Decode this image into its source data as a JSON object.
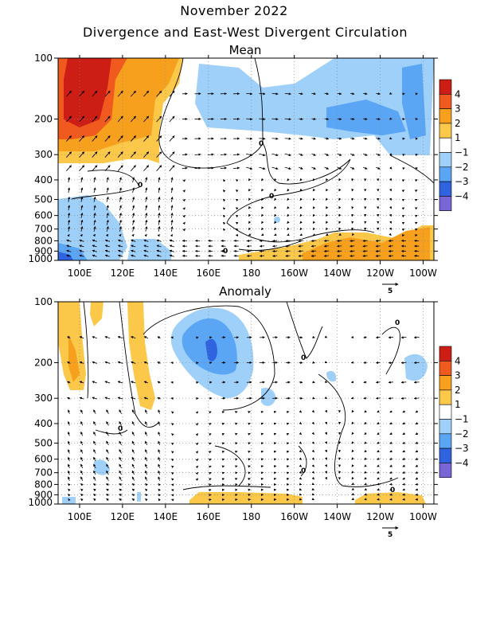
{
  "header": {
    "title": "November 2022",
    "subtitle": "Divergence and East-West Divergent Circulation"
  },
  "colors": {
    "d4": "#cc1e14",
    "d3": "#f05a1e",
    "d2": "#f7a01e",
    "d1": "#fcc84a",
    "c1": "#9fd0fa",
    "c2": "#5aa6f5",
    "c3": "#2f63e0",
    "c4": "#7865d6",
    "zero": "#ffffff"
  },
  "chart_data": [
    {
      "type": "heatmap",
      "title": "Mean",
      "x_ticks": [
        "100E",
        "120E",
        "140E",
        "160E",
        "180",
        "160W",
        "140W",
        "120W",
        "100W"
      ],
      "y_ticks": [
        "100",
        "200",
        "300",
        "400",
        "500",
        "600",
        "700",
        "800",
        "900",
        "1000"
      ],
      "xlim": [
        "90E",
        "95W"
      ],
      "ylim": [
        1000,
        100
      ],
      "y_scale": "log",
      "colorbar": [
        "4",
        "3",
        "2",
        "1",
        "−1",
        "−2",
        "−3",
        "−4"
      ],
      "reference_vector": "5",
      "contour_labels": [
        "0",
        "0",
        "0",
        "0"
      ],
      "features": [
        {
          "region": "90E–140E, 100–300 hPa",
          "sign": "divergence",
          "max_level": 4
        },
        {
          "region": "160E–100W, 100–250 hPa",
          "sign": "convergence",
          "max_level": -2
        },
        {
          "region": "90E–150E, 500–1000 hPa",
          "sign": "convergence",
          "max_level": -3
        },
        {
          "region": "180–100W, 750–1000 hPa",
          "sign": "divergence",
          "max_level": 2
        }
      ]
    },
    {
      "type": "heatmap",
      "title": "Anomaly",
      "x_ticks": [
        "100E",
        "120E",
        "140E",
        "160E",
        "180",
        "160W",
        "140W",
        "120W",
        "100W"
      ],
      "y_ticks": [
        "100",
        "200",
        "300",
        "400",
        "500",
        "600",
        "700",
        "800",
        "900",
        "1000"
      ],
      "xlim": [
        "90E",
        "95W"
      ],
      "ylim": [
        1000,
        100
      ],
      "y_scale": "log",
      "colorbar": [
        "4",
        "3",
        "2",
        "1",
        "−1",
        "−2",
        "−3",
        "−4"
      ],
      "reference_vector": "5",
      "contour_labels": [
        "0",
        "0",
        "0",
        "0",
        "0"
      ],
      "features": [
        {
          "region": "140E–180, 100–300 hPa",
          "sign": "convergence",
          "max_level": -3
        },
        {
          "region": "90E–130E, 100–300 hPa",
          "sign": "divergence",
          "max_level": 2
        },
        {
          "region": "150E–160W, 900–1000 hPa",
          "sign": "divergence",
          "max_level": 1
        },
        {
          "region": "130W–105W, 900–1000 hPa",
          "sign": "divergence",
          "max_level": 1
        }
      ]
    }
  ]
}
